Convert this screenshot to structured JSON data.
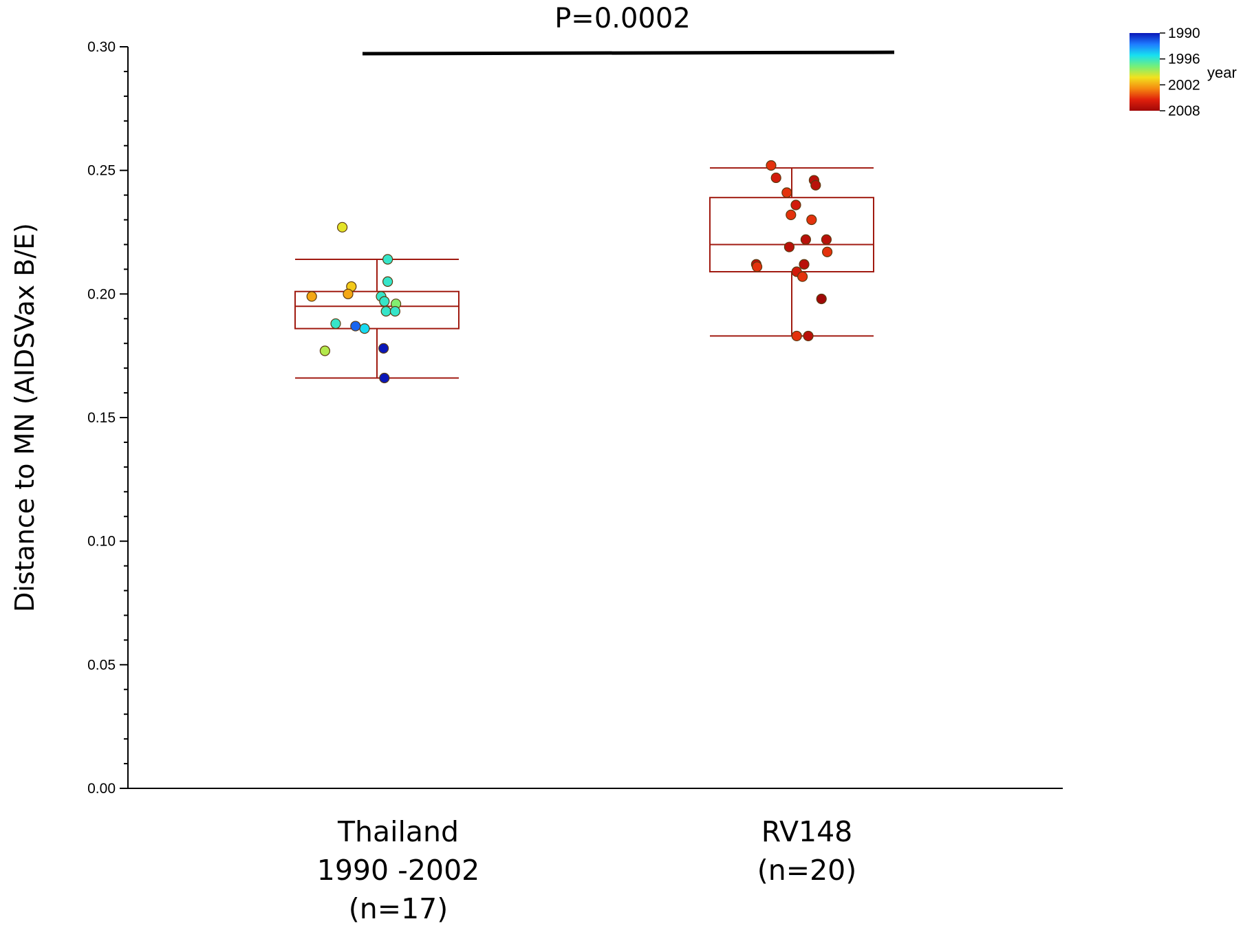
{
  "chart_data": {
    "type": "scatter",
    "subtype": "box-plot-with-jittered-points",
    "ylabel": "Distance to MN (AIDSVax B/E)",
    "ylim": [
      0,
      0.3
    ],
    "yticks": [
      "0.00",
      "0.05",
      "0.10",
      "0.15",
      "0.20",
      "0.25",
      "0.30"
    ],
    "grid": false,
    "annotation": "P=0.0002",
    "box_color": "#a01a10",
    "colorbar": {
      "title": "year",
      "ticks": [
        "1990",
        "1996",
        "2002",
        "2008"
      ],
      "range": [
        1990,
        2008
      ],
      "colors": [
        "#0a17b8",
        "#1e7bff",
        "#17e0f0",
        "#74f07a",
        "#f2e21e",
        "#f58a10",
        "#e0200c",
        "#a00808"
      ]
    },
    "groups": [
      {
        "label_lines": [
          "Thailand",
          "1990 -2002",
          "(n=17)"
        ],
        "box": {
          "whisker_low": 0.166,
          "q1": 0.186,
          "median": 0.195,
          "q3": 0.201,
          "whisker_high": 0.214
        },
        "points": [
          {
            "x": -0.42,
            "y": 0.227,
            "year": 2000
          },
          {
            "x": 0.13,
            "y": 0.214,
            "year": 1996
          },
          {
            "x": -0.31,
            "y": 0.203,
            "year": 2001
          },
          {
            "x": 0.13,
            "y": 0.205,
            "year": 1996
          },
          {
            "x": -0.35,
            "y": 0.2,
            "year": 2002
          },
          {
            "x": -0.79,
            "y": 0.199,
            "year": 2002
          },
          {
            "x": 0.05,
            "y": 0.199,
            "year": 1996
          },
          {
            "x": 0.23,
            "y": 0.196,
            "year": 1998
          },
          {
            "x": 0.09,
            "y": 0.197,
            "year": 1996
          },
          {
            "x": 0.11,
            "y": 0.193,
            "year": 1996
          },
          {
            "x": 0.22,
            "y": 0.193,
            "year": 1996
          },
          {
            "x": -0.5,
            "y": 0.188,
            "year": 1996
          },
          {
            "x": -0.15,
            "y": 0.186,
            "year": 1995
          },
          {
            "x": -0.26,
            "y": 0.187,
            "year": 1992
          },
          {
            "x": 0.08,
            "y": 0.178,
            "year": 1990
          },
          {
            "x": -0.63,
            "y": 0.177,
            "year": 1999
          },
          {
            "x": 0.09,
            "y": 0.166,
            "year": 1990
          }
        ]
      },
      {
        "label_lines": [
          "RV148",
          "(n=20)"
        ],
        "box": {
          "whisker_low": 0.183,
          "q1": 0.209,
          "median": 0.22,
          "q3": 0.239,
          "whisker_high": 0.251
        },
        "points": [
          {
            "x": -0.25,
            "y": 0.252,
            "year": 2005
          },
          {
            "x": -0.19,
            "y": 0.247,
            "year": 2006
          },
          {
            "x": 0.27,
            "y": 0.246,
            "year": 2007
          },
          {
            "x": 0.29,
            "y": 0.244,
            "year": 2007
          },
          {
            "x": -0.06,
            "y": 0.241,
            "year": 2005
          },
          {
            "x": 0.05,
            "y": 0.236,
            "year": 2006
          },
          {
            "x": -0.01,
            "y": 0.232,
            "year": 2005
          },
          {
            "x": 0.24,
            "y": 0.23,
            "year": 2005
          },
          {
            "x": 0.17,
            "y": 0.222,
            "year": 2007
          },
          {
            "x": 0.42,
            "y": 0.222,
            "year": 2007
          },
          {
            "x": -0.03,
            "y": 0.219,
            "year": 2007
          },
          {
            "x": 0.43,
            "y": 0.217,
            "year": 2005
          },
          {
            "x": 0.15,
            "y": 0.212,
            "year": 2007
          },
          {
            "x": -0.43,
            "y": 0.212,
            "year": 2007
          },
          {
            "x": -0.42,
            "y": 0.211,
            "year": 2005
          },
          {
            "x": 0.06,
            "y": 0.209,
            "year": 2006
          },
          {
            "x": 0.13,
            "y": 0.207,
            "year": 2005
          },
          {
            "x": 0.36,
            "y": 0.198,
            "year": 2008
          },
          {
            "x": 0.06,
            "y": 0.183,
            "year": 2005
          },
          {
            "x": 0.2,
            "y": 0.183,
            "year": 2007
          }
        ]
      }
    ]
  }
}
